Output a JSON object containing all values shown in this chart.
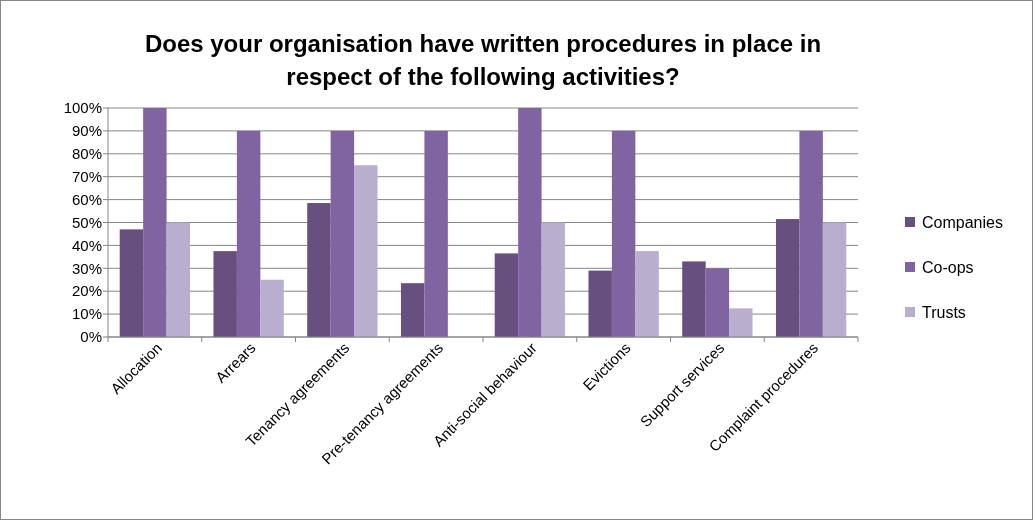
{
  "chart_data": {
    "type": "bar",
    "title": "Does your organisation have written procedures in place in respect of the following activities?",
    "categories": [
      "Allocation",
      "Arrears",
      "Tenancy agreements",
      "Pre-tenancy agreements",
      "Anti-social behaviour",
      "Evictions",
      "Support services",
      "Complaint procedures"
    ],
    "series": [
      {
        "name": "Companies",
        "color": "#67507f",
        "values": [
          47,
          37.5,
          58.5,
          23.5,
          36.5,
          29,
          33,
          51.5
        ]
      },
      {
        "name": "Co-ops",
        "color": "#8064a2",
        "values": [
          100,
          90,
          90,
          90,
          100,
          90,
          30,
          90
        ]
      },
      {
        "name": "Trusts",
        "color": "#b9aecd",
        "values": [
          50,
          25,
          75,
          0,
          50,
          37.5,
          12.5,
          50
        ]
      }
    ],
    "ylim": [
      0,
      100
    ],
    "yticks": [
      {
        "value": 0,
        "label": "0%"
      },
      {
        "value": 10,
        "label": "10%"
      },
      {
        "value": 20,
        "label": "20%"
      },
      {
        "value": 30,
        "label": "30%"
      },
      {
        "value": 40,
        "label": "40%"
      },
      {
        "value": 50,
        "label": "50%"
      },
      {
        "value": 60,
        "label": "60%"
      },
      {
        "value": 70,
        "label": "70%"
      },
      {
        "value": 80,
        "label": "80%"
      },
      {
        "value": 90,
        "label": "90%"
      },
      {
        "value": 100,
        "label": "100%"
      }
    ],
    "grid": "y",
    "legend": "right"
  }
}
